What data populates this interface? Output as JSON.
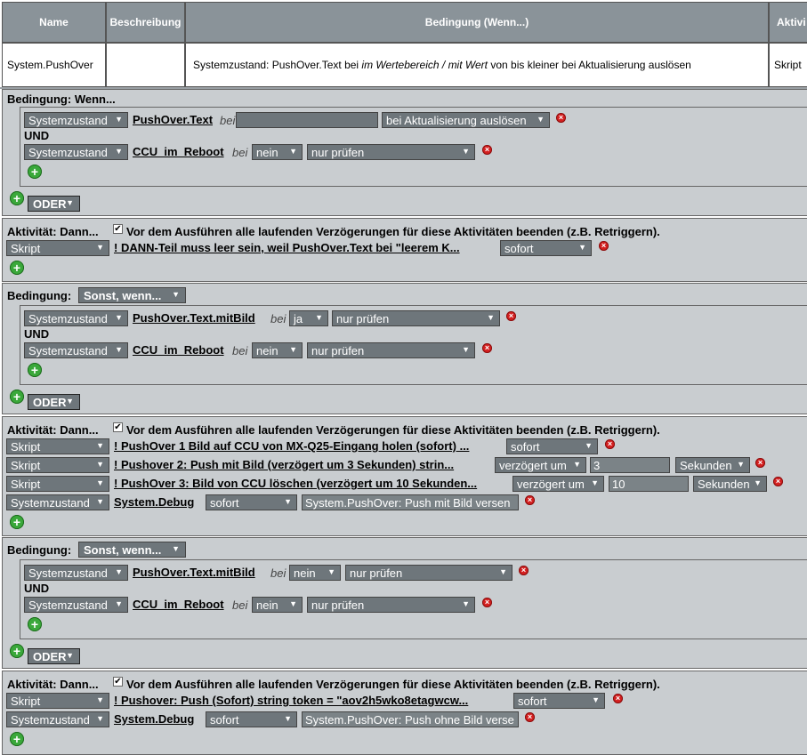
{
  "header": {
    "col_name": "Name",
    "col_desc": "Beschreibung",
    "col_cond": "Bedingung (Wenn...)",
    "col_act": "Aktivi",
    "row_name": "System.PushOver",
    "row_desc": "",
    "cond_a": "Systemzustand: PushOver.Text bei ",
    "cond_b": "im Wertebereich / mit Wert",
    "cond_c": " von bis kleiner bei Aktualisierung auslösen",
    "row_act": "Skript"
  },
  "labels": {
    "bedingung_wenn": "Bedingung: Wenn...",
    "bedingung": "Bedingung:",
    "sonst_wenn": "Sonst, wenn...",
    "und": "UND",
    "oder": "ODER",
    "aktivitaet": "Aktivität: Dann...",
    "beenden": "Vor dem Ausführen alle laufenden Verzögerungen für diese Aktivitäten beenden (z.B. Retriggern).",
    "bei": "bei",
    "check": "✔",
    "del": "×",
    "add": "+",
    "arrow": "▼"
  },
  "c1": {
    "r1": {
      "type": "Systemzustand",
      "link": "PushOver.Text",
      "value": "",
      "trigger": "bei Aktualisierung auslösen"
    },
    "r2": {
      "type": "Systemzustand",
      "link": "CCU_im_Reboot",
      "value": "nein",
      "trigger": "nur prüfen"
    }
  },
  "a1": {
    "r1": {
      "type": "Skript",
      "link": "! DANN-Teil muss leer sein, weil PushOver.Text bei \"leerem K...",
      "timing": "sofort"
    }
  },
  "c2": {
    "r1": {
      "type": "Systemzustand",
      "link": "PushOver.Text.mitBild",
      "value": "ja",
      "trigger": "nur prüfen"
    },
    "r2": {
      "type": "Systemzustand",
      "link": "CCU_im_Reboot",
      "value": "nein",
      "trigger": "nur prüfen"
    }
  },
  "a2": {
    "r1": {
      "type": "Skript",
      "link": "! PushOver 1 Bild auf CCU von MX-Q25-Eingang holen (sofort) ...",
      "timing": "sofort"
    },
    "r2": {
      "type": "Skript",
      "link": "! Pushover 2: Push mit Bild (verzögert um 3 Sekunden) strin...",
      "timing": "verzögert um",
      "amount": "3",
      "unit": "Sekunden"
    },
    "r3": {
      "type": "Skript",
      "link": "! PushOver 3: Bild von CCU löschen (verzögert um 10 Sekunden...",
      "timing": "verzögert um",
      "amount": "10",
      "unit": "Sekunden"
    },
    "r4": {
      "type": "Systemzustand",
      "link": "System.Debug",
      "timing": "sofort",
      "text": "System.PushOver: Push mit Bild versen"
    }
  },
  "c3": {
    "r1": {
      "type": "Systemzustand",
      "link": "PushOver.Text.mitBild",
      "value": "nein",
      "trigger": "nur prüfen"
    },
    "r2": {
      "type": "Systemzustand",
      "link": "CCU_im_Reboot",
      "value": "nein",
      "trigger": "nur prüfen"
    }
  },
  "a3": {
    "r1": {
      "type": "Skript",
      "link": "! Pushover: Push (Sofort) string token = \"aov2h5wko8etagwcw...",
      "timing": "sofort"
    },
    "r2": {
      "type": "Systemzustand",
      "link": "System.Debug",
      "timing": "sofort",
      "text": "System.PushOver: Push ohne Bild verse"
    }
  }
}
